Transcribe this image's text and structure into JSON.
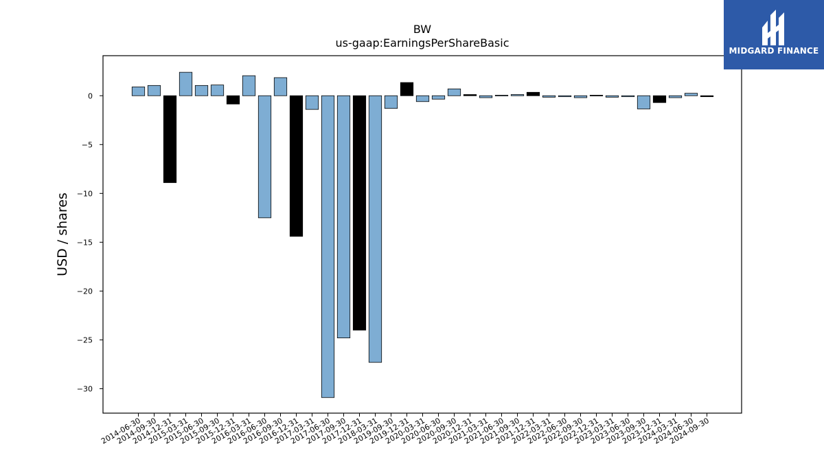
{
  "chart_data": {
    "type": "bar",
    "title": "BW",
    "subtitle": "us-gaap:EarningsPerShareBasic",
    "xlabel": "",
    "ylabel": "USD / shares",
    "ylim": [
      -32.5,
      4.1
    ],
    "yticks": [
      0,
      -5,
      -10,
      -15,
      -20,
      -25,
      -30
    ],
    "ytick_labels": [
      "0",
      "−5",
      "−10",
      "−15",
      "−20",
      "−25",
      "−30"
    ],
    "categories": [
      "2014-06-30",
      "2014-09-30",
      "2014-12-31",
      "2015-03-31",
      "2015-06-30",
      "2015-09-30",
      "2015-12-31",
      "2016-03-31",
      "2016-06-30",
      "2016-09-30",
      "2016-12-31",
      "2017-03-31",
      "2017-06-30",
      "2017-09-30",
      "2017-12-31",
      "2018-03-31",
      "2019-09-30",
      "2019-12-31",
      "2020-03-31",
      "2020-06-30",
      "2020-09-30",
      "2020-12-31",
      "2021-03-31",
      "2021-06-30",
      "2021-09-30",
      "2021-12-31",
      "2022-03-31",
      "2022-06-30",
      "2022-09-30",
      "2022-12-31",
      "2023-03-31",
      "2023-06-30",
      "2023-09-30",
      "2023-12-31",
      "2024-03-31",
      "2024-06-30",
      "2024-09-30"
    ],
    "values": [
      0.9,
      1.05,
      -8.9,
      2.4,
      1.05,
      1.1,
      -0.85,
      2.05,
      -12.5,
      1.85,
      -14.4,
      -1.4,
      -30.9,
      -24.8,
      -24.0,
      -27.3,
      -1.3,
      1.35,
      -0.6,
      -0.35,
      0.7,
      0.12,
      -0.2,
      0.05,
      0.12,
      0.35,
      -0.15,
      -0.1,
      -0.2,
      0.05,
      -0.15,
      -0.1,
      -1.35,
      -0.7,
      -0.2,
      0.25,
      -0.1
    ],
    "bar_colors": [
      "#7eadd3",
      "#7eadd3",
      "#000000",
      "#7eadd3",
      "#7eadd3",
      "#7eadd3",
      "#000000",
      "#7eadd3",
      "#7eadd3",
      "#7eadd3",
      "#000000",
      "#7eadd3",
      "#7eadd3",
      "#7eadd3",
      "#000000",
      "#7eadd3",
      "#7eadd3",
      "#000000",
      "#7eadd3",
      "#7eadd3",
      "#7eadd3",
      "#000000",
      "#7eadd3",
      "#7eadd3",
      "#7eadd3",
      "#000000",
      "#7eadd3",
      "#7eadd3",
      "#7eadd3",
      "#000000",
      "#7eadd3",
      "#7eadd3",
      "#7eadd3",
      "#000000",
      "#7eadd3",
      "#7eadd3",
      "#000000"
    ],
    "grid": false,
    "legend": "none"
  },
  "logo": {
    "text": "MIDGARD FINANCE",
    "background": "#2d5aa8",
    "icon": "midgard-logo-icon"
  }
}
